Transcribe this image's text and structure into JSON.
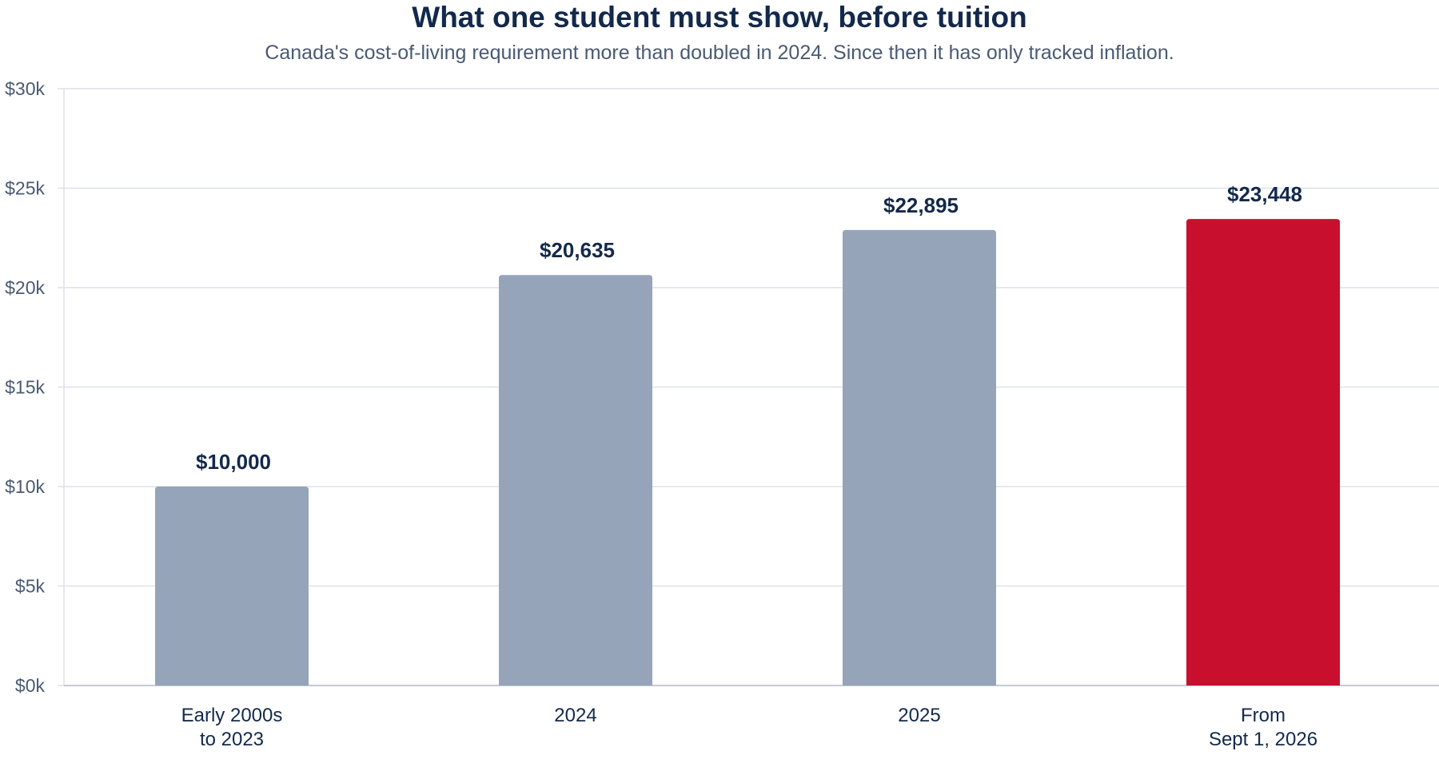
{
  "chart_data": {
    "type": "bar",
    "title": "What one student must show, before tuition",
    "subtitle": "Canada's cost-of-living requirement more than doubled in 2024. Since then it has only tracked inflation.",
    "xlabel": "",
    "ylabel": "",
    "categories": [
      [
        "Early 2000s",
        "to 2023"
      ],
      [
        "2024"
      ],
      [
        "2025"
      ],
      [
        "From",
        "Sept 1, 2026"
      ]
    ],
    "values": [
      10000,
      20635,
      22895,
      23448
    ],
    "value_labels": [
      "$10,000",
      "$20,635",
      "$22,895",
      "$23,448"
    ],
    "ylim": [
      0,
      30000
    ],
    "y_ticks": [
      0,
      5000,
      10000,
      15000,
      20000,
      25000,
      30000
    ],
    "y_tick_labels": [
      "$0k",
      "$5k",
      "$10k",
      "$15k",
      "$20k",
      "$25k",
      "$30k"
    ],
    "grid": true,
    "legend": "none",
    "bar_colors": [
      "#96a4ba",
      "#96a4ba",
      "#96a4ba",
      "#c8102e"
    ],
    "colors": {
      "title": "#13294b",
      "subtitle": "#4a5a72",
      "grid": "#dde1ea",
      "axis": "#c4cad5",
      "tick_label": "#4a5a72",
      "category_label": "#13294b",
      "value_label": "#13294b"
    }
  }
}
